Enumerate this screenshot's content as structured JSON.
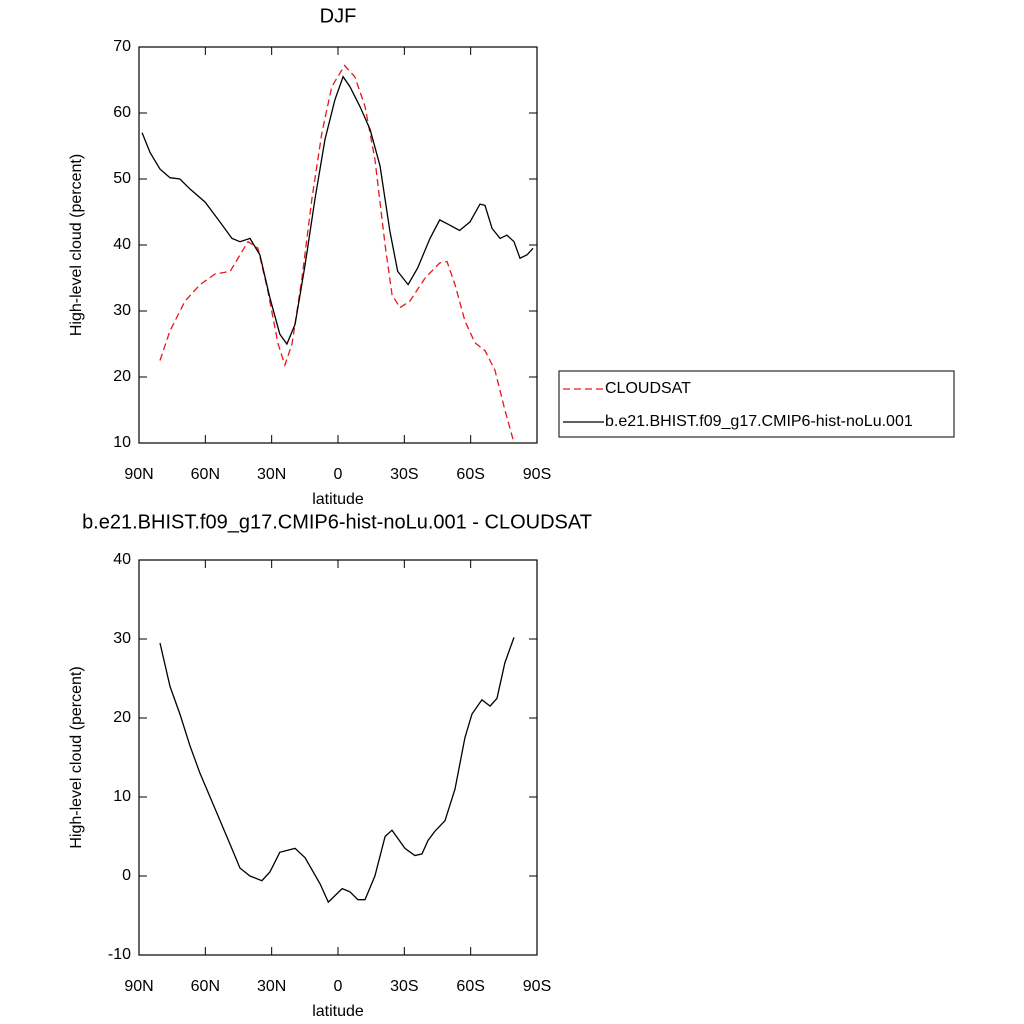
{
  "chart_data": [
    {
      "type": "line",
      "title": "DJF",
      "xlabel": "latitude",
      "ylabel": "High-level cloud (percent)",
      "xlim": [
        90,
        -90
      ],
      "ylim": [
        10,
        70
      ],
      "xticks": [
        {
          "value": 90,
          "label": "90N"
        },
        {
          "value": 60,
          "label": "60N"
        },
        {
          "value": 30,
          "label": "30N"
        },
        0,
        {
          "value": -30,
          "label": "30S"
        },
        {
          "value": -60,
          "label": "60S"
        },
        {
          "value": -90,
          "label": "90S"
        }
      ],
      "yticks": [
        10,
        20,
        30,
        40,
        50,
        60,
        70
      ],
      "legend": "right",
      "series": [
        {
          "name": "CLOUDSAT",
          "color": "#e8171c",
          "dash": true,
          "x": [
            80.5,
            76,
            69.2,
            62.4,
            55.6,
            48.8,
            44.3,
            40.7,
            36.2,
            31.7,
            27.1,
            24,
            20.8,
            16.3,
            11.8,
            7.3,
            2.8,
            -3,
            -7.6,
            -12.2,
            -16.7,
            -21.3,
            -24.4,
            -28,
            -32.5,
            -39.4,
            -46.1,
            -49.3,
            -52.9,
            -57.4,
            -61.9,
            -66.5,
            -71,
            -75.5,
            -79.6
          ],
          "values": [
            22.5,
            27,
            31.5,
            34,
            35.6,
            36,
            38.5,
            40.5,
            39.5,
            33,
            25,
            21.8,
            25,
            35,
            47,
            57,
            64,
            67.2,
            65.5,
            61,
            53,
            40,
            32.5,
            30.5,
            31.5,
            35,
            37.3,
            37.5,
            34,
            28.5,
            25.2,
            24,
            21,
            15,
            10
          ]
        },
        {
          "name": "b.e21.BHIST.f09_g17.CMIP6-hist-noLu.001",
          "color": "#000000",
          "dash": false,
          "x": [
            88.6,
            85,
            80.5,
            76,
            71.5,
            67,
            60.1,
            53.4,
            48,
            44.3,
            39.8,
            35.3,
            30.8,
            26.3,
            23.1,
            19.4,
            14.9,
            10.4,
            5.9,
            1.4,
            -2.3,
            -5.4,
            -9.9,
            -14.5,
            -19,
            -23.5,
            -27,
            -31.7,
            -36,
            -41.6,
            -46,
            -50.6,
            -55,
            -59.7,
            -64.2,
            -66.5,
            -69.7,
            -73.3,
            -76.4,
            -79.6,
            -82.3,
            -85.5,
            -88.2
          ],
          "values": [
            57,
            54,
            51.5,
            50.2,
            50,
            48.5,
            46.5,
            43.5,
            41,
            40.5,
            41,
            38.5,
            32,
            26.5,
            25,
            28,
            37,
            47,
            56,
            62,
            65.5,
            64,
            61,
            57.5,
            52,
            42,
            36,
            34,
            36.5,
            41,
            43.8,
            43,
            42.2,
            43.5,
            46.2,
            46,
            42.5,
            41,
            41.5,
            40.5,
            38,
            38.5,
            39.5
          ]
        }
      ]
    },
    {
      "type": "line",
      "title": "b.e21.BHIST.f09_g17.CMIP6-hist-noLu.001 - CLOUDSAT",
      "xlabel": "latitude",
      "ylabel": "High-level cloud (percent)",
      "xlim": [
        90,
        -90
      ],
      "ylim": [
        -10,
        40
      ],
      "xticks": [
        {
          "value": 90,
          "label": "90N"
        },
        {
          "value": 60,
          "label": "60N"
        },
        {
          "value": 30,
          "label": "30N"
        },
        0,
        {
          "value": -30,
          "label": "30S"
        },
        {
          "value": -60,
          "label": "60S"
        },
        {
          "value": -90,
          "label": "90S"
        }
      ],
      "yticks": [
        -10,
        0,
        10,
        20,
        30,
        40
      ],
      "series": [
        {
          "color": "#000000",
          "dash": false,
          "x": [
            80.5,
            76,
            71.5,
            67,
            62.4,
            55.6,
            48.8,
            44.3,
            39.8,
            34.4,
            30.8,
            26.3,
            19.4,
            14.9,
            8.1,
            4.4,
            -1.9,
            -5.4,
            -9,
            -12.2,
            -16.7,
            -21.3,
            -24.4,
            -30.3,
            -34.8,
            -38,
            -40.7,
            -43.9,
            -48.4,
            -52.9,
            -57.4,
            -60.6,
            -65.1,
            -68.8,
            -71.9,
            -75.5,
            -79.6
          ],
          "values": [
            29.5,
            24,
            20.5,
            16.5,
            13,
            8.5,
            4,
            1,
            0,
            -0.6,
            0.5,
            3,
            3.5,
            2.3,
            -1,
            -3.3,
            -1.6,
            -2,
            -3,
            -3,
            0,
            5,
            5.8,
            3.5,
            2.6,
            2.8,
            4.5,
            5.7,
            7,
            11,
            17.5,
            20.5,
            22.3,
            21.5,
            22.5,
            27,
            30.2
          ]
        }
      ]
    }
  ]
}
